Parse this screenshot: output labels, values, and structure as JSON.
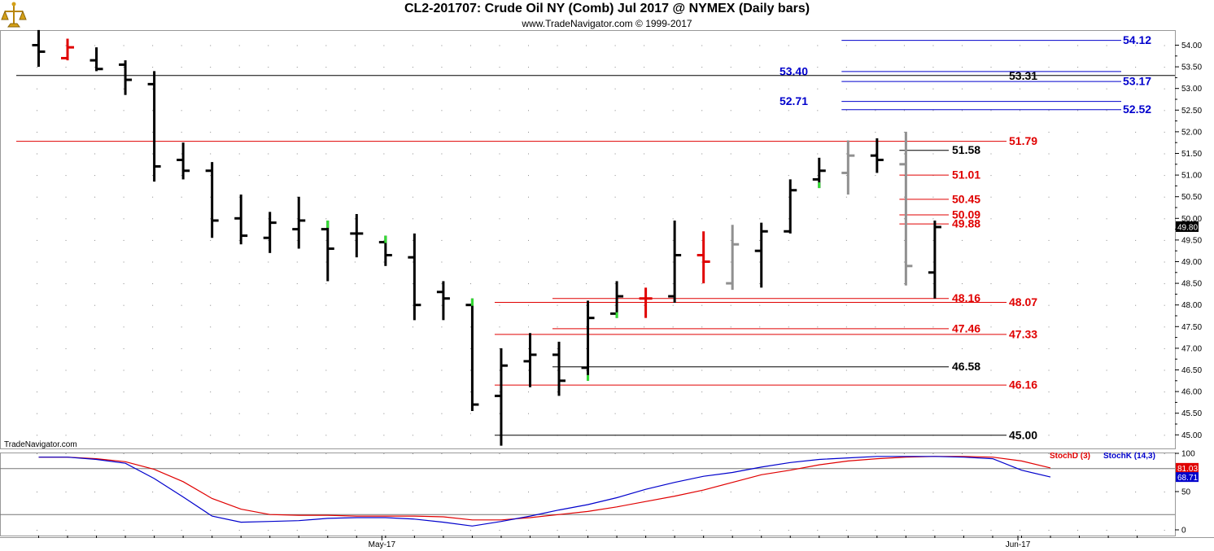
{
  "header": {
    "title": "CL2-201707:  Crude Oil NY (Comb) Jul 2017 @ NYMEX  (Daily bars)",
    "copyright": "www.TradeNavigator.com © 1999-2017"
  },
  "watermark": "TradeNavigator.com",
  "colors": {
    "bar": "#000000",
    "bar_red": "#e00000",
    "bar_gray": "#909090",
    "bar_green": "#33dd33",
    "line_black": "#000000",
    "line_red": "#e00000",
    "line_blue": "#0000cc",
    "stoch_d": "#e00000",
    "stoch_k": "#0000cc"
  },
  "chart_data": [
    {
      "type": "ohlc",
      "title": "CL2-201707:  Crude Oil NY (Comb) Jul 2017 @ NYMEX  (Daily bars)",
      "yticks": [
        "54.00",
        "53.50",
        "53.00",
        "52.50",
        "52.00",
        "51.50",
        "51.00",
        "50.50",
        "50.00",
        "49.50",
        "49.00",
        "48.50",
        "48.00",
        "47.50",
        "47.00",
        "46.50",
        "46.00",
        "45.50",
        "45.00"
      ],
      "ylim": [
        44.75,
        54.35
      ],
      "xticks": [
        {
          "label": "May-17",
          "index": 12
        },
        {
          "label": "Jun-17",
          "index": 34
        }
      ],
      "last_price": "49.80",
      "bars": [
        {
          "i": -1,
          "o": 54.0,
          "h": 54.35,
          "l": 53.5,
          "c": 53.85,
          "color": "black"
        },
        {
          "i": 0,
          "o": 53.7,
          "h": 54.15,
          "l": 53.65,
          "c": 53.95,
          "color": "red"
        },
        {
          "i": 1,
          "o": 53.65,
          "h": 53.95,
          "l": 53.4,
          "c": 53.45,
          "color": "black"
        },
        {
          "i": 2,
          "o": 53.55,
          "h": 53.65,
          "l": 52.85,
          "c": 53.2,
          "color": "black"
        },
        {
          "i": 3,
          "o": 53.1,
          "h": 53.4,
          "l": 50.85,
          "c": 51.2,
          "color": "black"
        },
        {
          "i": 4,
          "o": 51.35,
          "h": 51.75,
          "l": 50.9,
          "c": 51.1,
          "color": "black"
        },
        {
          "i": 5,
          "o": 51.1,
          "h": 51.3,
          "l": 49.55,
          "c": 49.95,
          "color": "black"
        },
        {
          "i": 6,
          "o": 50.0,
          "h": 50.55,
          "l": 49.4,
          "c": 49.6,
          "color": "black"
        },
        {
          "i": 7,
          "o": 49.55,
          "h": 50.15,
          "l": 49.2,
          "c": 49.9,
          "color": "black"
        },
        {
          "i": 8,
          "o": 49.75,
          "h": 50.5,
          "l": 49.3,
          "c": 49.95,
          "color": "black"
        },
        {
          "i": 9,
          "o": 49.75,
          "h": 49.95,
          "l": 48.55,
          "c": 49.3,
          "color": "black",
          "green_high": true
        },
        {
          "i": 10,
          "o": 49.65,
          "h": 50.1,
          "l": 49.1,
          "c": 49.65,
          "color": "black"
        },
        {
          "i": 11,
          "o": 49.45,
          "h": 49.6,
          "l": 48.9,
          "c": 49.15,
          "color": "black",
          "green_high": true
        },
        {
          "i": 12,
          "o": 49.1,
          "h": 49.65,
          "l": 47.65,
          "c": 48.0,
          "color": "black"
        },
        {
          "i": 13,
          "o": 48.3,
          "h": 48.55,
          "l": 47.65,
          "c": 48.15,
          "color": "black"
        },
        {
          "i": 14,
          "o": 48.0,
          "h": 48.15,
          "l": 45.55,
          "c": 45.7,
          "color": "black",
          "green_high": true
        },
        {
          "i": 15,
          "o": 45.9,
          "h": 47.0,
          "l": 44.75,
          "c": 46.6,
          "color": "black"
        },
        {
          "i": 16,
          "o": 46.7,
          "h": 47.35,
          "l": 46.1,
          "c": 46.85,
          "color": "black"
        },
        {
          "i": 17,
          "o": 46.85,
          "h": 47.15,
          "l": 45.9,
          "c": 46.25,
          "color": "black"
        },
        {
          "i": 18,
          "o": 46.55,
          "h": 48.1,
          "l": 46.25,
          "c": 47.7,
          "color": "black",
          "green_low": true
        },
        {
          "i": 19,
          "o": 47.8,
          "h": 48.55,
          "l": 47.7,
          "c": 48.2,
          "color": "black",
          "green_low": true
        },
        {
          "i": 20,
          "o": 48.15,
          "h": 48.4,
          "l": 47.7,
          "c": 48.15,
          "color": "red"
        },
        {
          "i": 21,
          "o": 48.2,
          "h": 49.95,
          "l": 48.05,
          "c": 49.15,
          "color": "black"
        },
        {
          "i": 22,
          "o": 49.15,
          "h": 49.7,
          "l": 48.5,
          "c": 49.0,
          "color": "red"
        },
        {
          "i": 23,
          "o": 48.5,
          "h": 49.85,
          "l": 48.35,
          "c": 49.4,
          "color": "gray"
        },
        {
          "i": 24,
          "o": 49.25,
          "h": 49.9,
          "l": 48.4,
          "c": 49.7,
          "color": "black"
        },
        {
          "i": 25,
          "o": 49.7,
          "h": 50.9,
          "l": 49.65,
          "c": 50.65,
          "color": "black"
        },
        {
          "i": 26,
          "o": 50.9,
          "h": 51.4,
          "l": 50.7,
          "c": 51.1,
          "color": "black",
          "green_low": true
        },
        {
          "i": 27,
          "o": 51.05,
          "h": 51.8,
          "l": 50.55,
          "c": 51.45,
          "color": "gray"
        },
        {
          "i": 28,
          "o": 51.45,
          "h": 51.85,
          "l": 51.05,
          "c": 51.35,
          "color": "black"
        },
        {
          "i": 29,
          "o": 51.25,
          "h": 52.0,
          "l": 48.45,
          "c": 48.9,
          "color": "gray"
        },
        {
          "i": 30,
          "o": 48.75,
          "h": 49.95,
          "l": 48.15,
          "c": 49.8,
          "color": "black"
        }
      ],
      "levels": [
        {
          "value": 54.12,
          "label": "54.12",
          "color": "blue",
          "start": 27,
          "text_side": "right"
        },
        {
          "value": 53.4,
          "label": "53.40",
          "color": "blue",
          "start": 27,
          "text_side": "left"
        },
        {
          "value": 53.31,
          "label": "53.31",
          "color": "black",
          "start": -2,
          "text_side": "mid"
        },
        {
          "value": 53.17,
          "label": "53.17",
          "color": "blue",
          "start": 27,
          "text_side": "right"
        },
        {
          "value": 52.71,
          "label": "52.71",
          "color": "blue",
          "start": 27,
          "text_side": "left"
        },
        {
          "value": 52.52,
          "label": "52.52",
          "color": "blue",
          "start": 27,
          "text_side": "right"
        },
        {
          "value": 51.79,
          "label": "51.79",
          "color": "red",
          "start": -2,
          "text_side": "right"
        },
        {
          "value": 51.58,
          "label": "51.58",
          "color": "black",
          "start": 29,
          "text_side": "mid"
        },
        {
          "value": 51.01,
          "label": "51.01",
          "color": "red",
          "start": 29,
          "text_side": "mid"
        },
        {
          "value": 50.45,
          "label": "50.45",
          "color": "red",
          "start": 29,
          "text_side": "mid"
        },
        {
          "value": 50.09,
          "label": "50.09",
          "color": "red",
          "start": 29,
          "text_side": "mid"
        },
        {
          "value": 49.88,
          "label": "49.88",
          "color": "red",
          "start": 29,
          "text_side": "mid"
        },
        {
          "value": 48.16,
          "label": "48.16",
          "color": "red",
          "start": 17,
          "text_side": "mid"
        },
        {
          "value": 48.07,
          "label": "48.07",
          "color": "red",
          "start": 15,
          "text_side": "right"
        },
        {
          "value": 47.46,
          "label": "47.46",
          "color": "red",
          "start": 17,
          "text_side": "mid"
        },
        {
          "value": 47.33,
          "label": "47.33",
          "color": "red",
          "start": 15,
          "text_side": "right"
        },
        {
          "value": 46.58,
          "label": "46.58",
          "color": "black",
          "start": 17,
          "text_side": "mid"
        },
        {
          "value": 46.16,
          "label": "46.16",
          "color": "red",
          "start": 15,
          "text_side": "right"
        },
        {
          "value": 45.0,
          "label": "45.00",
          "color": "black",
          "start": 15,
          "text_side": "right"
        }
      ]
    },
    {
      "type": "line",
      "title": "StochD (3)  StochK (14,3)",
      "yticks": [
        "100",
        "50",
        "0"
      ],
      "ylim": [
        0,
        100
      ],
      "reference_lines": [
        80,
        20
      ],
      "series": [
        {
          "name": "StochD (3)",
          "color": "red",
          "last": "81.03",
          "values": [
            95,
            95,
            93,
            89,
            79,
            63,
            41,
            27,
            20,
            19,
            19,
            18,
            18,
            18,
            17,
            13,
            13,
            16,
            20,
            24,
            30,
            37,
            44,
            52,
            62,
            72,
            78,
            85,
            90,
            93,
            95,
            96,
            96,
            95,
            90,
            81
          ]
        },
        {
          "name": "StochK (14,3)",
          "color": "blue",
          "last": "68.71",
          "values": [
            95,
            95,
            92,
            87,
            67,
            43,
            18,
            10,
            11,
            12,
            15,
            16,
            16,
            14,
            10,
            5,
            11,
            18,
            26,
            33,
            42,
            53,
            62,
            70,
            75,
            82,
            88,
            92,
            94,
            96,
            96,
            96,
            95,
            93,
            78,
            69
          ]
        }
      ]
    }
  ],
  "stoch_legend": {
    "d": "StochD (3)",
    "k": "StochK (14,3)"
  }
}
